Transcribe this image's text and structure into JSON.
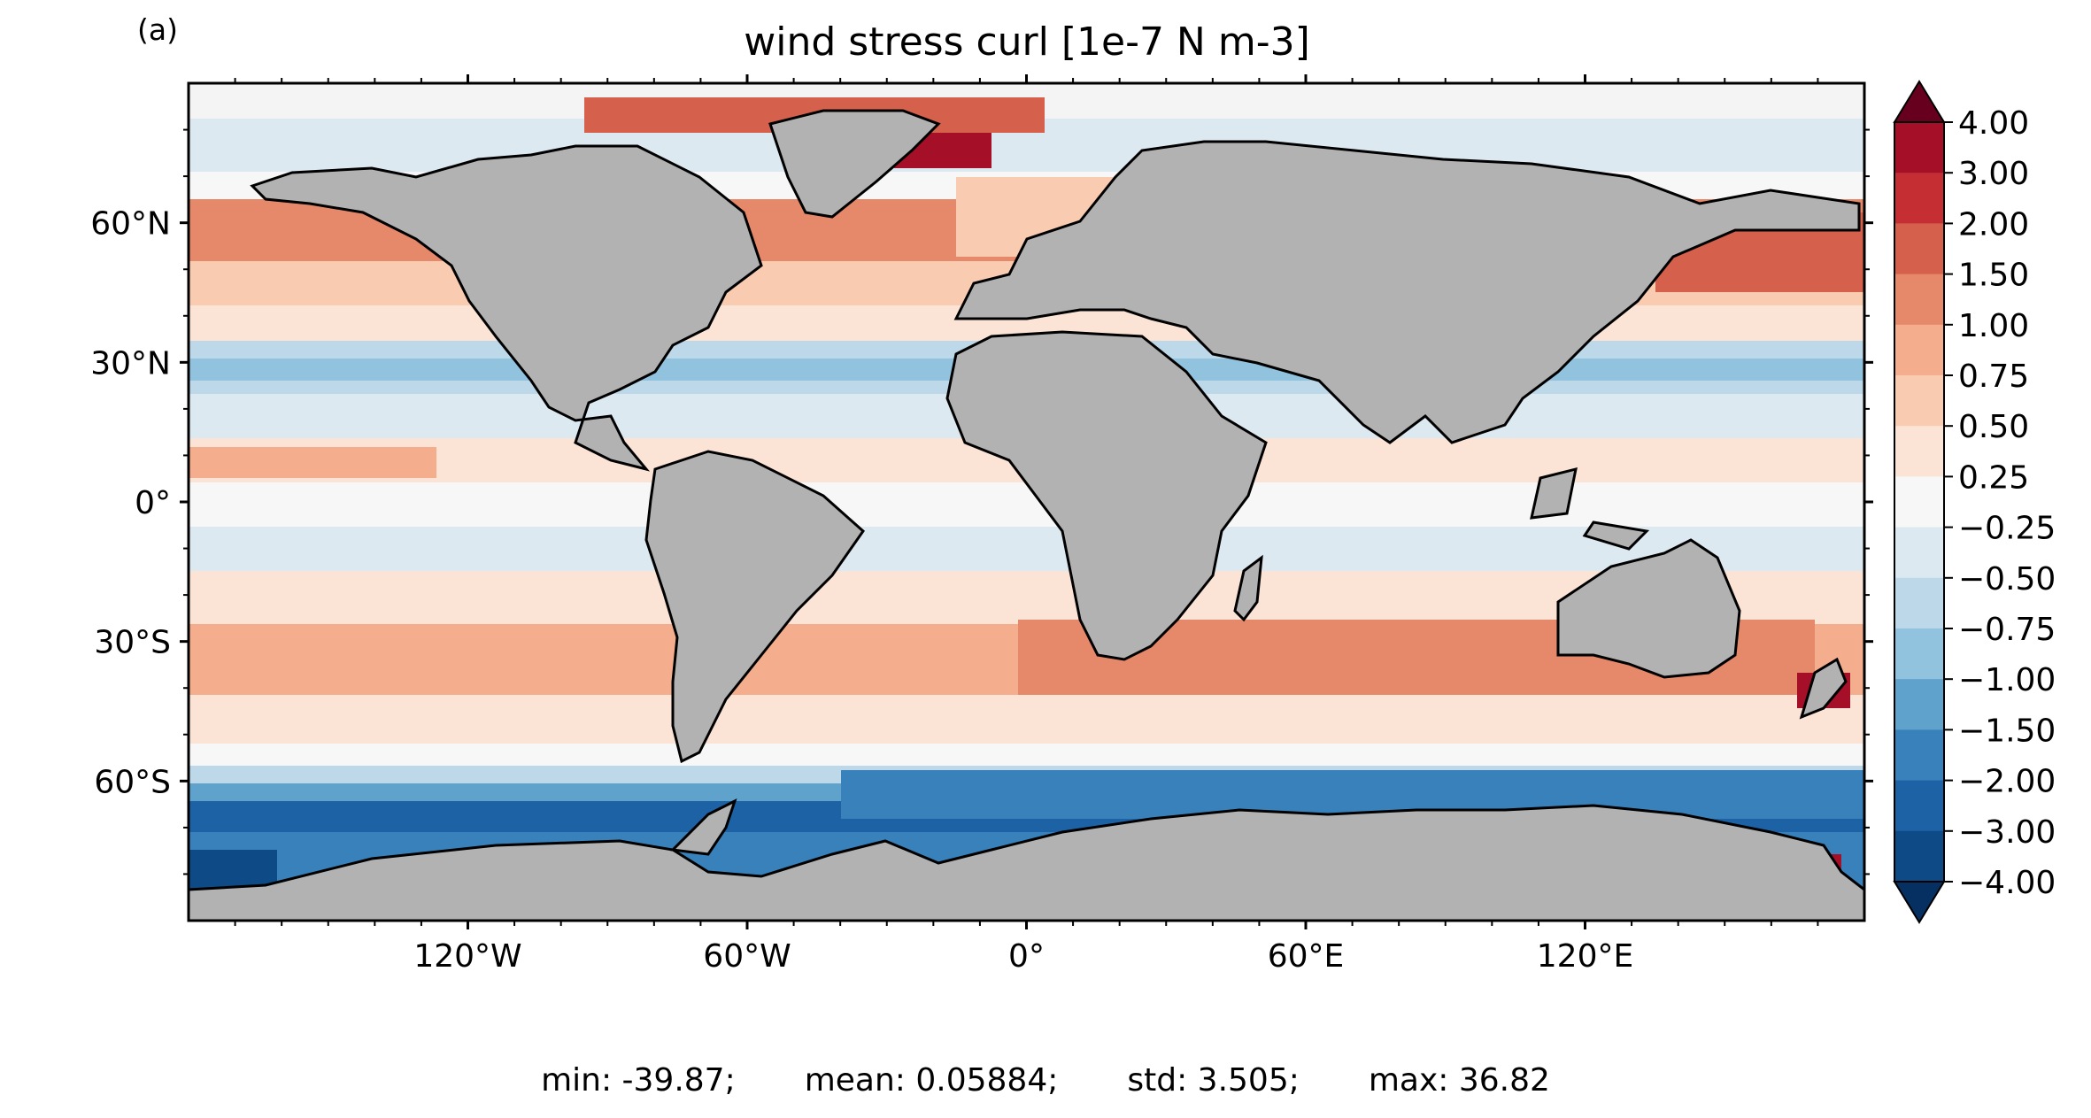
{
  "figure": {
    "panel_label": "(a)",
    "title": "wind stress curl [1e-7 N m-3]"
  },
  "axes": {
    "lat_ticks": [
      {
        "value": 60,
        "label": "60°N"
      },
      {
        "value": 30,
        "label": "30°N"
      },
      {
        "value": 0,
        "label": "0°"
      },
      {
        "value": -30,
        "label": "30°S"
      },
      {
        "value": -60,
        "label": "60°S"
      }
    ],
    "lon_ticks": [
      {
        "value": -120,
        "label": "120°W"
      },
      {
        "value": -60,
        "label": "60°W"
      },
      {
        "value": 0,
        "label": "0°"
      },
      {
        "value": 60,
        "label": "60°E"
      },
      {
        "value": 120,
        "label": "120°E"
      }
    ],
    "lon_range": [
      -180,
      180
    ],
    "lat_range": [
      -90,
      90
    ]
  },
  "colorbar": {
    "levels": [
      "4.00",
      "3.00",
      "2.00",
      "1.50",
      "1.00",
      "0.75",
      "0.50",
      "0.25",
      "−0.25",
      "−0.50",
      "−0.75",
      "−1.00",
      "−1.50",
      "−2.00",
      "−3.00",
      "−4.00"
    ],
    "colors": [
      "#67001f",
      "#a50f28",
      "#c52f33",
      "#d5604b",
      "#e6886a",
      "#f4ad8d",
      "#f9cbb0",
      "#fbe4d6",
      "#f7f7f7",
      "#dde9f1",
      "#bcd8e9",
      "#92c3de",
      "#5fa2cb",
      "#3881bb",
      "#1e62a6",
      "#0d4a86",
      "#053061"
    ],
    "extend": "both"
  },
  "colors": {
    "land": "#b2b2b2",
    "coast": "#000000",
    "ocean_neutral": "#f7f7f7"
  },
  "stats": {
    "min": "min: -39.87;",
    "mean": "mean: 0.05884;",
    "std": "std: 3.505;",
    "max": "max: 36.82"
  }
}
